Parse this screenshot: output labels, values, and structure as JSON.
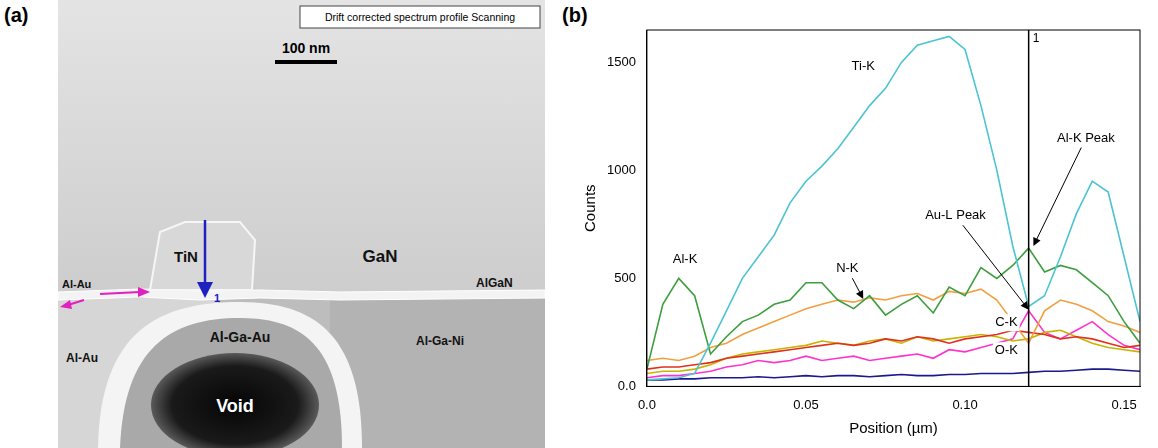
{
  "panel_a": {
    "letter": "(a)",
    "header": "Drift corrected spectrum profile Scanning",
    "scale_bar": "100 nm",
    "labels": [
      "GaN",
      "TiN",
      "Al-Au",
      "AlGaN",
      "Al-Ga-Au",
      "Al-Ga-Ni",
      "Al-Au",
      "Void"
    ],
    "marker": "1"
  },
  "panel_b_label": "(b)",
  "chart_data": {
    "type": "line",
    "x_label": "Position (µm)",
    "y_label": "Counts",
    "x": [
      0,
      0.005,
      0.01,
      0.015,
      0.02,
      0.025,
      0.03,
      0.035,
      0.04,
      0.045,
      0.05,
      0.055,
      0.06,
      0.065,
      0.07,
      0.075,
      0.08,
      0.085,
      0.09,
      0.095,
      0.1,
      0.105,
      0.11,
      0.115,
      0.12,
      0.125,
      0.13,
      0.135,
      0.14,
      0.145,
      0.15,
      0.155
    ],
    "series": [
      {
        "name": "Ti-K",
        "color": "#4cc3d1",
        "label_at": [
          0.068,
          1480
        ],
        "values": [
          30,
          35,
          40,
          60,
          200,
          350,
          500,
          600,
          700,
          850,
          950,
          1020,
          1100,
          1200,
          1300,
          1380,
          1500,
          1580,
          1600,
          1620,
          1560,
          1300,
          1000,
          650,
          370,
          420,
          600,
          800,
          950,
          900,
          600,
          300
        ]
      },
      {
        "name": "Al-K",
        "color": "#3c9e3c",
        "label_at": [
          0.012,
          590
        ],
        "values": [
          80,
          380,
          500,
          420,
          150,
          230,
          300,
          330,
          380,
          400,
          480,
          480,
          400,
          360,
          420,
          330,
          380,
          420,
          340,
          460,
          420,
          550,
          500,
          560,
          640,
          530,
          560,
          540,
          480,
          420,
          300,
          200
        ]
      },
      {
        "name": "N-K",
        "color": "#f0a040",
        "label_at": [
          0.063,
          545
        ],
        "label_arrow_to": [
          0.068,
          405
        ],
        "values": [
          120,
          130,
          120,
          140,
          180,
          200,
          240,
          270,
          300,
          330,
          360,
          380,
          400,
          390,
          410,
          400,
          420,
          430,
          400,
          440,
          430,
          450,
          400,
          300,
          200,
          350,
          400,
          380,
          350,
          300,
          280,
          250
        ]
      },
      {
        "name": "C-K",
        "color": "#e0301e",
        "label_at": [
          0.113,
          295
        ],
        "values": [
          80,
          90,
          90,
          100,
          110,
          130,
          140,
          150,
          160,
          170,
          180,
          190,
          200,
          190,
          200,
          220,
          210,
          230,
          220,
          200,
          220,
          230,
          240,
          260,
          250,
          240,
          220,
          230,
          220,
          200,
          180,
          190
        ]
      },
      {
        "name": "O-K",
        "color": "#c8b400",
        "label_at": [
          0.113,
          165
        ],
        "values": [
          60,
          70,
          70,
          80,
          100,
          130,
          150,
          160,
          170,
          180,
          190,
          210,
          200,
          190,
          210,
          220,
          200,
          230,
          210,
          220,
          230,
          240,
          230,
          210,
          220,
          250,
          260,
          230,
          200,
          180,
          170,
          160
        ]
      },
      {
        "color": "#ff33cc",
        "values": [
          40,
          50,
          50,
          60,
          70,
          90,
          100,
          120,
          110,
          120,
          140,
          120,
          130,
          140,
          120,
          130,
          140,
          150,
          130,
          170,
          160,
          180,
          200,
          220,
          350,
          250,
          220,
          260,
          300,
          240,
          190,
          170
        ]
      },
      {
        "color": "#1a1a8c",
        "values": [
          30,
          30,
          35,
          35,
          40,
          40,
          40,
          45,
          40,
          45,
          50,
          45,
          50,
          50,
          45,
          50,
          55,
          50,
          50,
          55,
          55,
          60,
          60,
          60,
          65,
          70,
          70,
          75,
          80,
          80,
          75,
          70
        ]
      }
    ],
    "annotations": [
      {
        "text": "Au-L Peak",
        "x": 0.097,
        "y": 790,
        "arrow_to": [
          0.12,
          355
        ]
      },
      {
        "text": "Al-K Peak",
        "x": 0.138,
        "y": 1150,
        "arrow_to": [
          0.1215,
          650
        ]
      }
    ],
    "vertical_line": {
      "x": 0.12,
      "label": "1"
    },
    "xlim": [
      0,
      0.155
    ],
    "xticks": [
      {
        "value": 0,
        "label": "0.0"
      },
      0.05,
      {
        "value": 0.1,
        "label": "0.10"
      },
      0.15
    ],
    "ylim": [
      0,
      1650
    ],
    "yticks": [
      {
        "value": 0,
        "label": "0.0"
      },
      500,
      1000,
      1500
    ],
    "grid": false
  }
}
